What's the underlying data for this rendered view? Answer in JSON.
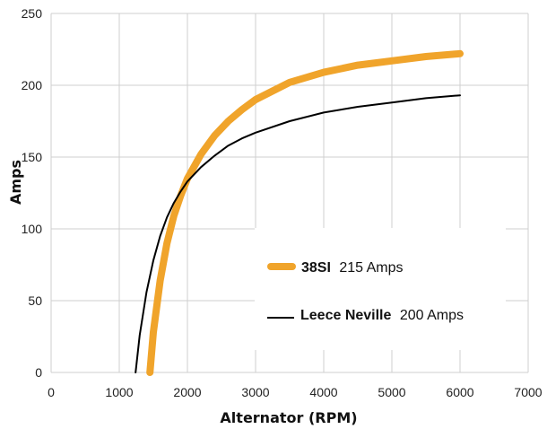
{
  "chart_data": {
    "type": "line",
    "xlabel": "Alternator (RPM)",
    "ylabel": "Amps",
    "xlim": [
      0,
      7000
    ],
    "ylim": [
      0,
      250
    ],
    "x_ticks": [
      "0",
      "1000",
      "2000",
      "3000",
      "4000",
      "5000",
      "6000",
      "7000"
    ],
    "y_ticks": [
      "0",
      "50",
      "100",
      "150",
      "200",
      "250"
    ],
    "grid": true,
    "legend_position": "center-right",
    "series": [
      {
        "name": "38SI",
        "legend_detail": "215 Amps",
        "color": "#F0A42B",
        "x": [
          1450,
          1500,
          1600,
          1700,
          1800,
          1900,
          2000,
          2200,
          2400,
          2600,
          2800,
          3000,
          3500,
          4000,
          4500,
          5000,
          5500,
          6000
        ],
        "y": [
          0,
          28,
          64,
          90,
          109,
          123,
          135,
          152,
          165,
          175,
          183,
          190,
          202,
          209,
          214,
          217,
          220,
          222
        ]
      },
      {
        "name": "Leece Neville",
        "legend_detail": "200 Amps",
        "color": "#000000",
        "x": [
          1240,
          1300,
          1400,
          1500,
          1600,
          1700,
          1800,
          1900,
          2000,
          2200,
          2400,
          2600,
          2800,
          3000,
          3500,
          4000,
          4500,
          5000,
          5500,
          6000
        ],
        "y": [
          0,
          26,
          56,
          78,
          95,
          108,
          118,
          126,
          133,
          143,
          151,
          158,
          163,
          167,
          175,
          181,
          185,
          188,
          191,
          193
        ]
      }
    ]
  }
}
